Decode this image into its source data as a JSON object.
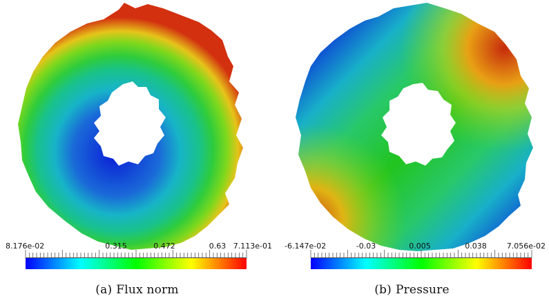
{
  "figures": [
    {
      "id": "a",
      "label": "(a)",
      "caption": "Flux norm",
      "colorbar": {
        "min_label": "8.176e-02",
        "max_label": "7.113e-01",
        "ticks": [
          "0.315",
          "0.472",
          "0.63"
        ]
      }
    },
    {
      "id": "b",
      "label": "(b)",
      "caption": "Pressure",
      "colorbar": {
        "min_label": "-6.147e-02",
        "max_label": "7.056e-02",
        "ticks": [
          "-0.03",
          "0.005",
          "0.038"
        ]
      }
    }
  ],
  "colormap": [
    "#0000ff",
    "#00ffff",
    "#00ff00",
    "#ffff00",
    "#ff0000"
  ]
}
